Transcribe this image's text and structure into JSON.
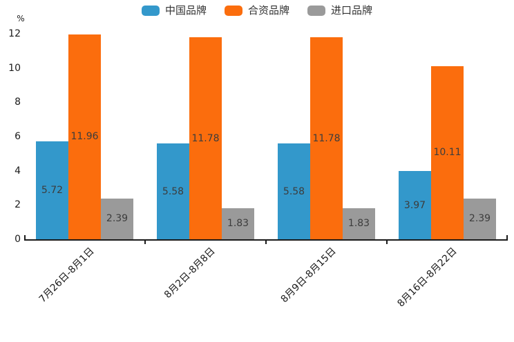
{
  "chart_data": {
    "type": "bar",
    "title": "",
    "ylabel": "%",
    "xlabel": "",
    "ylim": [
      0,
      12
    ],
    "yticks": [
      0,
      2,
      4,
      6,
      8,
      10,
      12
    ],
    "grid": false,
    "legend_position": "top",
    "value_labels": "centered-inside-bars",
    "categories": [
      "7月26日-8月1日",
      "8月2日-8月8日",
      "8月9日-8月15日",
      "8月16日-8月22日"
    ],
    "series": [
      {
        "name": "中国品牌",
        "color": "#3398cb",
        "values": [
          5.72,
          5.58,
          5.58,
          3.97
        ]
      },
      {
        "name": "合资品牌",
        "color": "#fb6d0d",
        "values": [
          11.96,
          11.78,
          11.78,
          10.11
        ]
      },
      {
        "name": "进口品牌",
        "color": "#9a9a9a",
        "values": [
          2.39,
          1.83,
          1.83,
          2.39
        ]
      }
    ],
    "colors": {
      "axis": "#1a1a1a",
      "tick_label": "#1a1a1a",
      "value_label": "#3c3c3c",
      "legend_label": "#333333",
      "background": "#ffffff"
    }
  }
}
